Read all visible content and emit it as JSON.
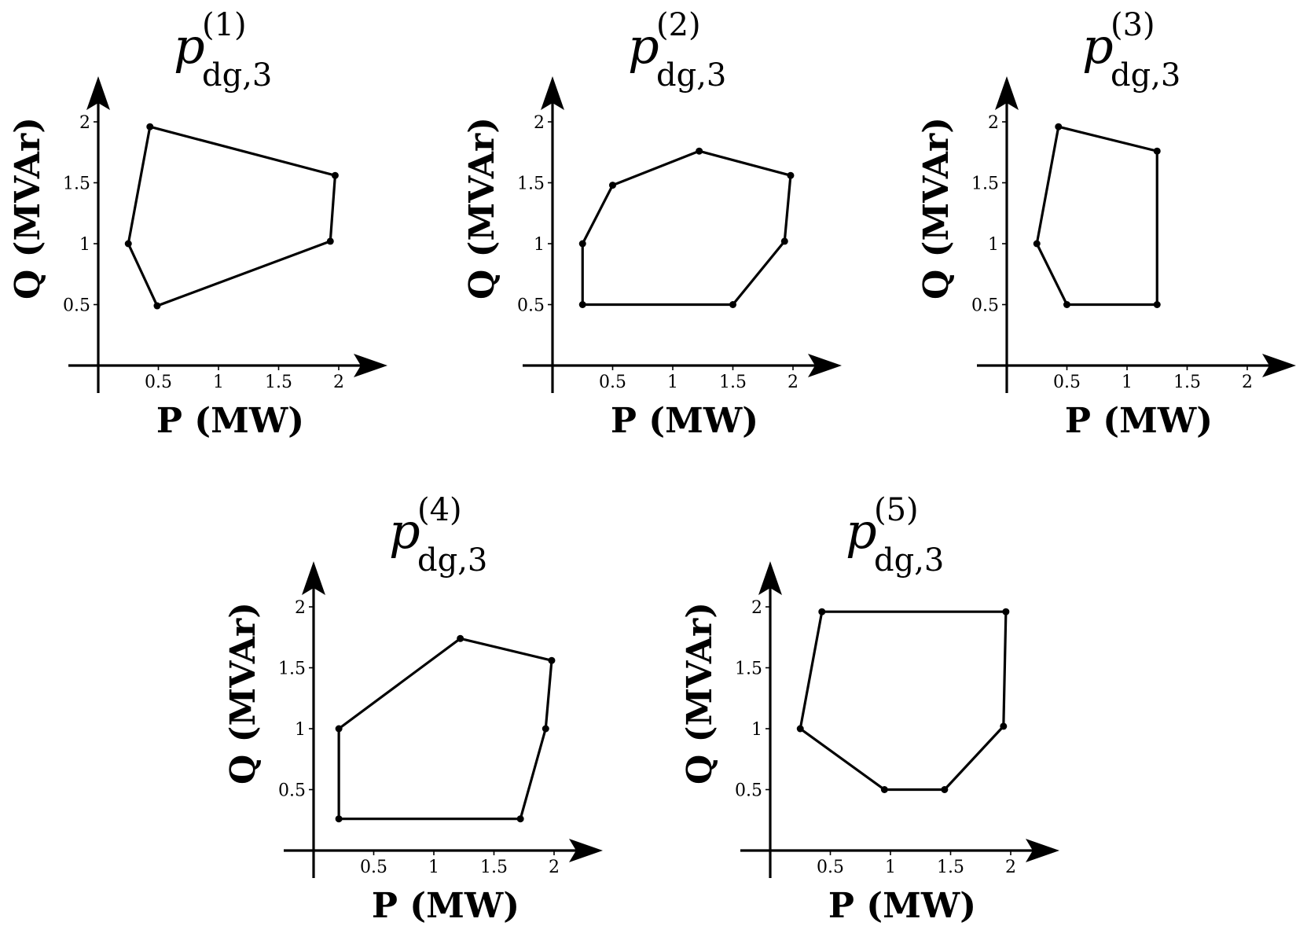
{
  "chart_data": [
    {
      "type": "scatter",
      "title": {
        "base": "p",
        "superscript": "(1)",
        "subscript": "dg,3"
      },
      "xlabel": "P (MW)",
      "ylabel": "Q (MVAr)",
      "xticks": [
        "0.5",
        "1",
        "1.5",
        "2"
      ],
      "yticks": [
        "0.5",
        "1",
        "1.5",
        "2"
      ],
      "xlim": [
        0,
        2.25
      ],
      "ylim": [
        0,
        2.1
      ],
      "series": [
        {
          "x": [
            0.43,
            1.97,
            1.93,
            0.49,
            0.25
          ],
          "y": [
            1.96,
            1.56,
            1.02,
            0.49,
            1.0
          ]
        }
      ]
    },
    {
      "type": "scatter",
      "title": {
        "base": "p",
        "superscript": "(2)",
        "subscript": "dg,3"
      },
      "xlabel": "P (MW)",
      "ylabel": "Q (MVAr)",
      "xticks": [
        "0.5",
        "1",
        "1.5",
        "2"
      ],
      "yticks": [
        "0.5",
        "1",
        "1.5",
        "2"
      ],
      "xlim": [
        0,
        2.25
      ],
      "ylim": [
        0,
        2.1
      ],
      "series": [
        {
          "x": [
            0.25,
            0.5,
            1.22,
            1.98,
            1.93,
            1.5,
            0.25
          ],
          "y": [
            1.0,
            1.48,
            1.76,
            1.56,
            1.02,
            0.5,
            0.5
          ]
        }
      ]
    },
    {
      "type": "scatter",
      "title": {
        "base": "p",
        "superscript": "(3)",
        "subscript": "dg,3"
      },
      "xlabel": "P (MW)",
      "ylabel": "Q (MVAr)",
      "xticks": [
        "0.5",
        "1",
        "1.5",
        "2"
      ],
      "yticks": [
        "0.5",
        "1",
        "1.5",
        "2"
      ],
      "xlim": [
        0,
        2.25
      ],
      "ylim": [
        0,
        2.1
      ],
      "series": [
        {
          "x": [
            0.43,
            1.25,
            1.25,
            0.5,
            0.25
          ],
          "y": [
            1.96,
            1.76,
            0.5,
            0.5,
            1.0
          ]
        }
      ]
    },
    {
      "type": "scatter",
      "title": {
        "base": "p",
        "superscript": "(4)",
        "subscript": "dg,3"
      },
      "xlabel": "P (MW)",
      "ylabel": "Q (MVAr)",
      "xticks": [
        "0.5",
        "1",
        "1.5",
        "2"
      ],
      "yticks": [
        "0.5",
        "1",
        "1.5",
        "2"
      ],
      "xlim": [
        0,
        2.25
      ],
      "ylim": [
        0,
        2.1
      ],
      "series": [
        {
          "x": [
            0.21,
            1.22,
            1.98,
            1.93,
            1.72,
            0.21
          ],
          "y": [
            1.0,
            1.74,
            1.56,
            1.0,
            0.26,
            0.26
          ]
        }
      ]
    },
    {
      "type": "scatter",
      "title": {
        "base": "p",
        "superscript": "(5)",
        "subscript": "dg,3"
      },
      "xlabel": "P (MW)",
      "ylabel": "Q (MVAr)",
      "xticks": [
        "0.5",
        "1",
        "1.5",
        "2"
      ],
      "yticks": [
        "0.5",
        "1",
        "1.5",
        "2"
      ],
      "xlim": [
        0,
        2.25
      ],
      "ylim": [
        0,
        2.1
      ],
      "series": [
        {
          "x": [
            0.43,
            1.96,
            1.94,
            1.45,
            0.95,
            0.25
          ],
          "y": [
            1.96,
            1.96,
            1.02,
            0.5,
            0.5,
            1.0
          ]
        }
      ]
    }
  ]
}
